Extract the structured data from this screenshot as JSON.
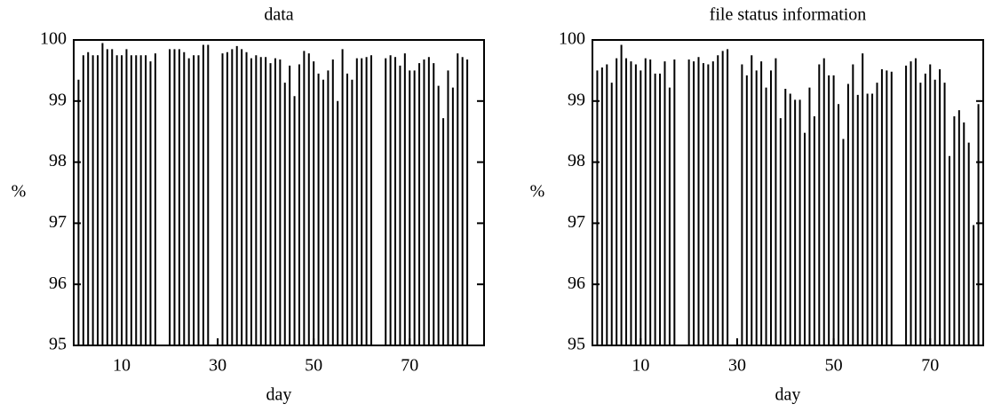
{
  "chart_data": [
    {
      "type": "bar",
      "title": "data",
      "xlabel": "day",
      "ylabel": "%",
      "color": "#000000",
      "x": [
        1,
        2,
        3,
        4,
        5,
        6,
        7,
        8,
        9,
        10,
        11,
        12,
        13,
        14,
        15,
        16,
        17,
        20,
        21,
        22,
        23,
        24,
        25,
        26,
        27,
        28,
        31,
        32,
        33,
        34,
        35,
        36,
        37,
        38,
        39,
        40,
        41,
        42,
        43,
        44,
        45,
        46,
        47,
        48,
        49,
        50,
        51,
        52,
        53,
        54,
        55,
        56,
        57,
        58,
        59,
        60,
        61,
        62,
        65,
        66,
        67,
        68,
        69,
        70,
        71,
        72,
        73,
        74,
        75,
        76,
        77,
        78,
        79,
        80,
        81,
        82
      ],
      "values": [
        99.35,
        99.75,
        99.8,
        99.75,
        99.75,
        99.95,
        99.85,
        99.85,
        99.75,
        99.75,
        99.85,
        99.75,
        99.75,
        99.75,
        99.75,
        99.65,
        99.78,
        99.85,
        99.85,
        99.85,
        99.8,
        99.7,
        99.75,
        99.75,
        99.92,
        99.92,
        99.78,
        99.8,
        99.85,
        99.9,
        99.85,
        99.8,
        99.7,
        99.75,
        99.72,
        99.72,
        99.62,
        99.7,
        99.68,
        99.3,
        99.58,
        99.08,
        99.6,
        99.82,
        99.78,
        99.65,
        99.45,
        99.35,
        99.5,
        99.68,
        99.0,
        99.85,
        99.45,
        99.35,
        99.7,
        99.7,
        99.72,
        99.75,
        99.7,
        99.75,
        99.72,
        99.58,
        99.78,
        99.5,
        99.5,
        99.62,
        99.68,
        99.72,
        99.62,
        99.25,
        98.72,
        99.5,
        99.22,
        99.78,
        99.72,
        99.68
      ],
      "xlim": [
        0,
        85.5
      ],
      "xticks": [
        10,
        30,
        50,
        70
      ],
      "ylim": [
        95,
        100
      ],
      "yticks": [
        95,
        96,
        97,
        98,
        99,
        100
      ]
    },
    {
      "type": "bar",
      "title": "file status information",
      "xlabel": "day",
      "ylabel": "%",
      "color": "#000000",
      "x": [
        1,
        2,
        3,
        4,
        5,
        6,
        7,
        8,
        9,
        10,
        11,
        12,
        13,
        14,
        15,
        16,
        17,
        20,
        21,
        22,
        23,
        24,
        25,
        26,
        27,
        28,
        31,
        32,
        33,
        34,
        35,
        36,
        37,
        38,
        39,
        40,
        41,
        42,
        43,
        44,
        45,
        46,
        47,
        48,
        49,
        50,
        51,
        52,
        53,
        54,
        55,
        56,
        57,
        58,
        59,
        60,
        61,
        62,
        65,
        66,
        67,
        68,
        69,
        70,
        71,
        72,
        73,
        74,
        75,
        76,
        77,
        78,
        79,
        80,
        81
      ],
      "values": [
        99.5,
        99.55,
        99.6,
        99.3,
        99.7,
        99.92,
        99.7,
        99.65,
        99.6,
        99.5,
        99.7,
        99.68,
        99.45,
        99.45,
        99.65,
        99.22,
        99.68,
        99.68,
        99.65,
        99.72,
        99.62,
        99.6,
        99.65,
        99.75,
        99.82,
        99.85,
        99.6,
        99.42,
        99.75,
        99.5,
        99.65,
        99.22,
        99.5,
        99.7,
        98.72,
        99.2,
        99.12,
        99.02,
        99.02,
        98.48,
        99.22,
        98.75,
        99.6,
        99.7,
        99.42,
        99.42,
        98.95,
        98.38,
        99.28,
        99.6,
        99.1,
        99.78,
        99.12,
        99.12,
        99.3,
        99.52,
        99.5,
        99.48,
        99.58,
        99.65,
        99.7,
        99.3,
        99.45,
        99.6,
        99.35,
        99.52,
        99.3,
        98.1,
        98.75,
        98.85,
        98.65,
        98.32,
        96.97,
        98.95,
        99.5
      ],
      "xlim": [
        0,
        81
      ],
      "xticks": [
        10,
        30,
        50,
        70
      ],
      "ylim": [
        95,
        100
      ],
      "yticks": [
        95,
        96,
        97,
        98,
        99,
        100
      ]
    }
  ]
}
